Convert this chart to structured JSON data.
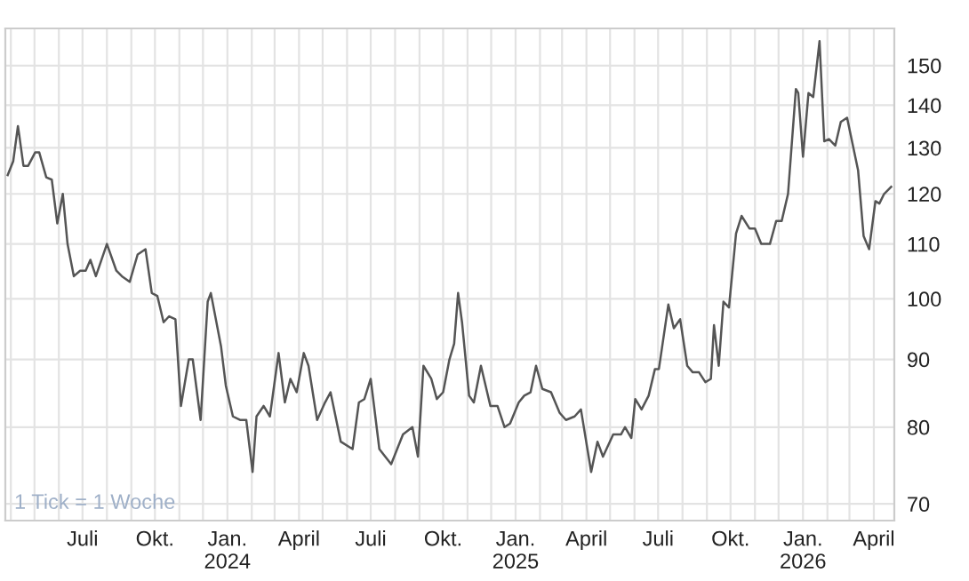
{
  "chart_data": {
    "type": "line",
    "log": "y",
    "grid": true,
    "marker": "none",
    "line_style": "solid",
    "annotations": [
      "1 Tick = 1 Woche"
    ],
    "xlim": [
      "2023-03-25",
      "2026-04-27"
    ],
    "xticks": [
      {
        "value": "2023-04-01",
        "label": null
      },
      {
        "value": "2023-05-01",
        "label": null
      },
      {
        "value": "2023-06-01",
        "label": null
      },
      {
        "value": "2023-07-01",
        "label": "Juli"
      },
      {
        "value": "2023-08-01",
        "label": null
      },
      {
        "value": "2023-09-01",
        "label": null
      },
      {
        "value": "2023-10-01",
        "label": "Okt."
      },
      {
        "value": "2023-11-01",
        "label": null
      },
      {
        "value": "2023-12-01",
        "label": null
      },
      {
        "value": "2024-01-01",
        "label": "Jan.\n2024"
      },
      {
        "value": "2024-02-01",
        "label": null
      },
      {
        "value": "2024-03-01",
        "label": null
      },
      {
        "value": "2024-04-01",
        "label": "April"
      },
      {
        "value": "2024-05-01",
        "label": null
      },
      {
        "value": "2024-06-01",
        "label": null
      },
      {
        "value": "2024-07-01",
        "label": "Juli"
      },
      {
        "value": "2024-08-01",
        "label": null
      },
      {
        "value": "2024-09-01",
        "label": null
      },
      {
        "value": "2024-10-01",
        "label": "Okt."
      },
      {
        "value": "2024-11-01",
        "label": null
      },
      {
        "value": "2024-12-01",
        "label": null
      },
      {
        "value": "2025-01-01",
        "label": "Jan.\n2025"
      },
      {
        "value": "2025-02-01",
        "label": null
      },
      {
        "value": "2025-03-01",
        "label": null
      },
      {
        "value": "2025-04-01",
        "label": "April"
      },
      {
        "value": "2025-05-01",
        "label": null
      },
      {
        "value": "2025-06-01",
        "label": null
      },
      {
        "value": "2025-07-01",
        "label": "Juli"
      },
      {
        "value": "2025-08-01",
        "label": null
      },
      {
        "value": "2025-09-01",
        "label": null
      },
      {
        "value": "2025-10-01",
        "label": "Okt."
      },
      {
        "value": "2025-11-01",
        "label": null
      },
      {
        "value": "2025-12-01",
        "label": null
      },
      {
        "value": "2026-01-01",
        "label": "Jan.\n2026"
      },
      {
        "value": "2026-02-01",
        "label": null
      },
      {
        "value": "2026-03-01",
        "label": null
      },
      {
        "value": "2026-04-01",
        "label": "April"
      }
    ],
    "ylim": [
      68,
      160
    ],
    "yticks": [
      70,
      80,
      90,
      100,
      110,
      120,
      130,
      140,
      150
    ],
    "series": [
      {
        "color": "#555555",
        "x": [
          "2023-03-28",
          "2023-04-04",
          "2023-04-10",
          "2023-04-12",
          "2023-04-17",
          "2023-04-23",
          "2023-05-02",
          "2023-05-07",
          "2023-05-16",
          "2023-05-23",
          "2023-05-30",
          "2023-06-06",
          "2023-06-12",
          "2023-06-20",
          "2023-06-28",
          "2023-07-05",
          "2023-07-11",
          "2023-07-18",
          "2023-08-01",
          "2023-08-13",
          "2023-08-20",
          "2023-08-30",
          "2023-09-09",
          "2023-09-19",
          "2023-09-27",
          "2023-10-04",
          "2023-10-12",
          "2023-10-19",
          "2023-10-27",
          "2023-11-03",
          "2023-11-13",
          "2023-11-18",
          "2023-11-28",
          "2023-12-07",
          "2023-12-11",
          "2023-12-24",
          "2023-12-30",
          "2024-01-08",
          "2024-01-17",
          "2024-01-25",
          "2024-02-02",
          "2024-02-07",
          "2024-02-16",
          "2024-02-24",
          "2024-03-06",
          "2024-03-14",
          "2024-03-21",
          "2024-03-29",
          "2024-04-07",
          "2024-04-13",
          "2024-04-24",
          "2024-05-04",
          "2024-05-11",
          "2024-05-24",
          "2024-06-08",
          "2024-06-16",
          "2024-06-23",
          "2024-07-01",
          "2024-07-12",
          "2024-07-27",
          "2024-08-11",
          "2024-08-23",
          "2024-08-30",
          "2024-09-06",
          "2024-09-16",
          "2024-09-23",
          "2024-10-01",
          "2024-10-09",
          "2024-10-15",
          "2024-10-20",
          "2024-10-25",
          "2024-11-03",
          "2024-11-09",
          "2024-11-18",
          "2024-11-30",
          "2024-12-09",
          "2024-12-18",
          "2024-12-25",
          "2025-01-05",
          "2025-01-12",
          "2025-01-20",
          "2025-01-27",
          "2025-02-04",
          "2025-02-15",
          "2025-02-26",
          "2025-03-06",
          "2025-03-17",
          "2025-03-25",
          "2025-04-07",
          "2025-04-15",
          "2025-04-22",
          "2025-05-05",
          "2025-05-15",
          "2025-05-20",
          "2025-05-28",
          "2025-06-02",
          "2025-06-10",
          "2025-06-19",
          "2025-06-27",
          "2025-07-02",
          "2025-07-14",
          "2025-07-21",
          "2025-07-29",
          "2025-08-07",
          "2025-08-14",
          "2025-08-22",
          "2025-08-30",
          "2025-09-06",
          "2025-09-10",
          "2025-09-16",
          "2025-09-22",
          "2025-09-29",
          "2025-10-08",
          "2025-10-15",
          "2025-10-25",
          "2025-11-01",
          "2025-11-09",
          "2025-11-20",
          "2025-11-28",
          "2025-12-05",
          "2025-12-13",
          "2025-12-23",
          "2025-12-26",
          "2026-01-01",
          "2026-01-08",
          "2026-01-14",
          "2026-01-22",
          "2026-01-28",
          "2026-02-03",
          "2026-02-11",
          "2026-02-18",
          "2026-02-26",
          "2026-03-12",
          "2026-03-19",
          "2026-03-26",
          "2026-04-03",
          "2026-04-08",
          "2026-04-14",
          "2026-04-23"
        ],
        "values": [
          124,
          127,
          135,
          132.5,
          126,
          126,
          129,
          129,
          123.5,
          123,
          114,
          120,
          110,
          104,
          105,
          105,
          107,
          104,
          110,
          105,
          104,
          103,
          108,
          109,
          101,
          100.5,
          96,
          97,
          96.5,
          83,
          90,
          90,
          81,
          99.5,
          101,
          92,
          86,
          81.5,
          81,
          81,
          74,
          81.5,
          83,
          81.5,
          91,
          83.5,
          87,
          85,
          91,
          89,
          81,
          83.5,
          85,
          78,
          77,
          83.5,
          84,
          87,
          77,
          75,
          79,
          80,
          76,
          89,
          87,
          84,
          85,
          90,
          92.5,
          101,
          96,
          84.5,
          83.5,
          89,
          83,
          83,
          80,
          80.5,
          83.5,
          84.5,
          85,
          89,
          85.5,
          85,
          82,
          81,
          81.5,
          82.5,
          74,
          78,
          76,
          79,
          79,
          80,
          78.5,
          84,
          82.5,
          84.5,
          88.5,
          88.5,
          99,
          95,
          96.5,
          89,
          88,
          88,
          86.5,
          87,
          95.5,
          89,
          99.5,
          98.5,
          112,
          115.5,
          113,
          113,
          110,
          110,
          114.5,
          114.5,
          120,
          144,
          143,
          128,
          143,
          142,
          156.5,
          131.5,
          132,
          130.5,
          136,
          137,
          125,
          111.5,
          109,
          118.5,
          118,
          120,
          121.5
        ]
      }
    ]
  }
}
